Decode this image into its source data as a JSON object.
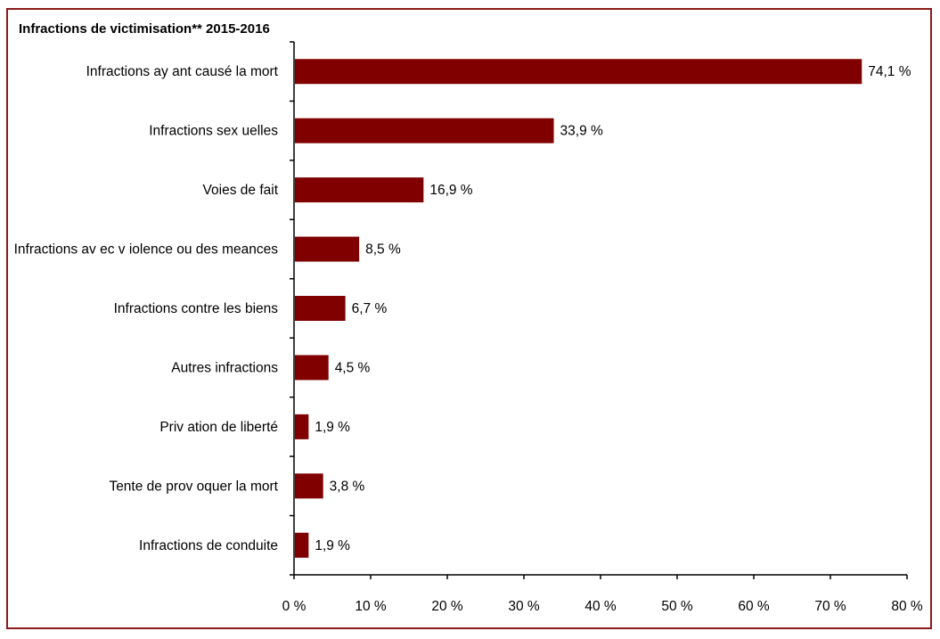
{
  "chart_data": {
    "type": "bar",
    "orientation": "horizontal",
    "title": "Infractions de victimisation**  2015-2016",
    "categories": [
      "Infractions ay ant causé la mort",
      "Infractions sex uelles",
      "Voies de fait",
      "Infractions av ec v iolence ou des meances",
      "Infractions contre les biens",
      "Autres infractions",
      "Priv ation de liberté",
      "Tente de prov oquer la mort",
      "Infractions de conduite"
    ],
    "values": [
      74.1,
      33.9,
      16.9,
      8.5,
      6.7,
      4.5,
      1.9,
      3.8,
      1.9
    ],
    "value_labels": [
      "74,1 %",
      "33,9 %",
      "16,9 %",
      "8,5 %",
      "6,7 %",
      "4,5 %",
      "1,9 %",
      "3,8 %",
      "1,9 %"
    ],
    "xlim": [
      0,
      80
    ],
    "x_ticks": [
      0,
      10,
      20,
      30,
      40,
      50,
      60,
      70,
      80
    ],
    "x_tick_labels": [
      "0 %",
      "10 %",
      "20 %",
      "30 %",
      "40 %",
      "50 %",
      "60 %",
      "70 %",
      "80 %"
    ],
    "xlabel": "",
    "ylabel": "",
    "grid": false,
    "legend": "none",
    "colors": {
      "bar": "#800000",
      "frame": "#8b1a1a",
      "axis": "#000000"
    }
  }
}
